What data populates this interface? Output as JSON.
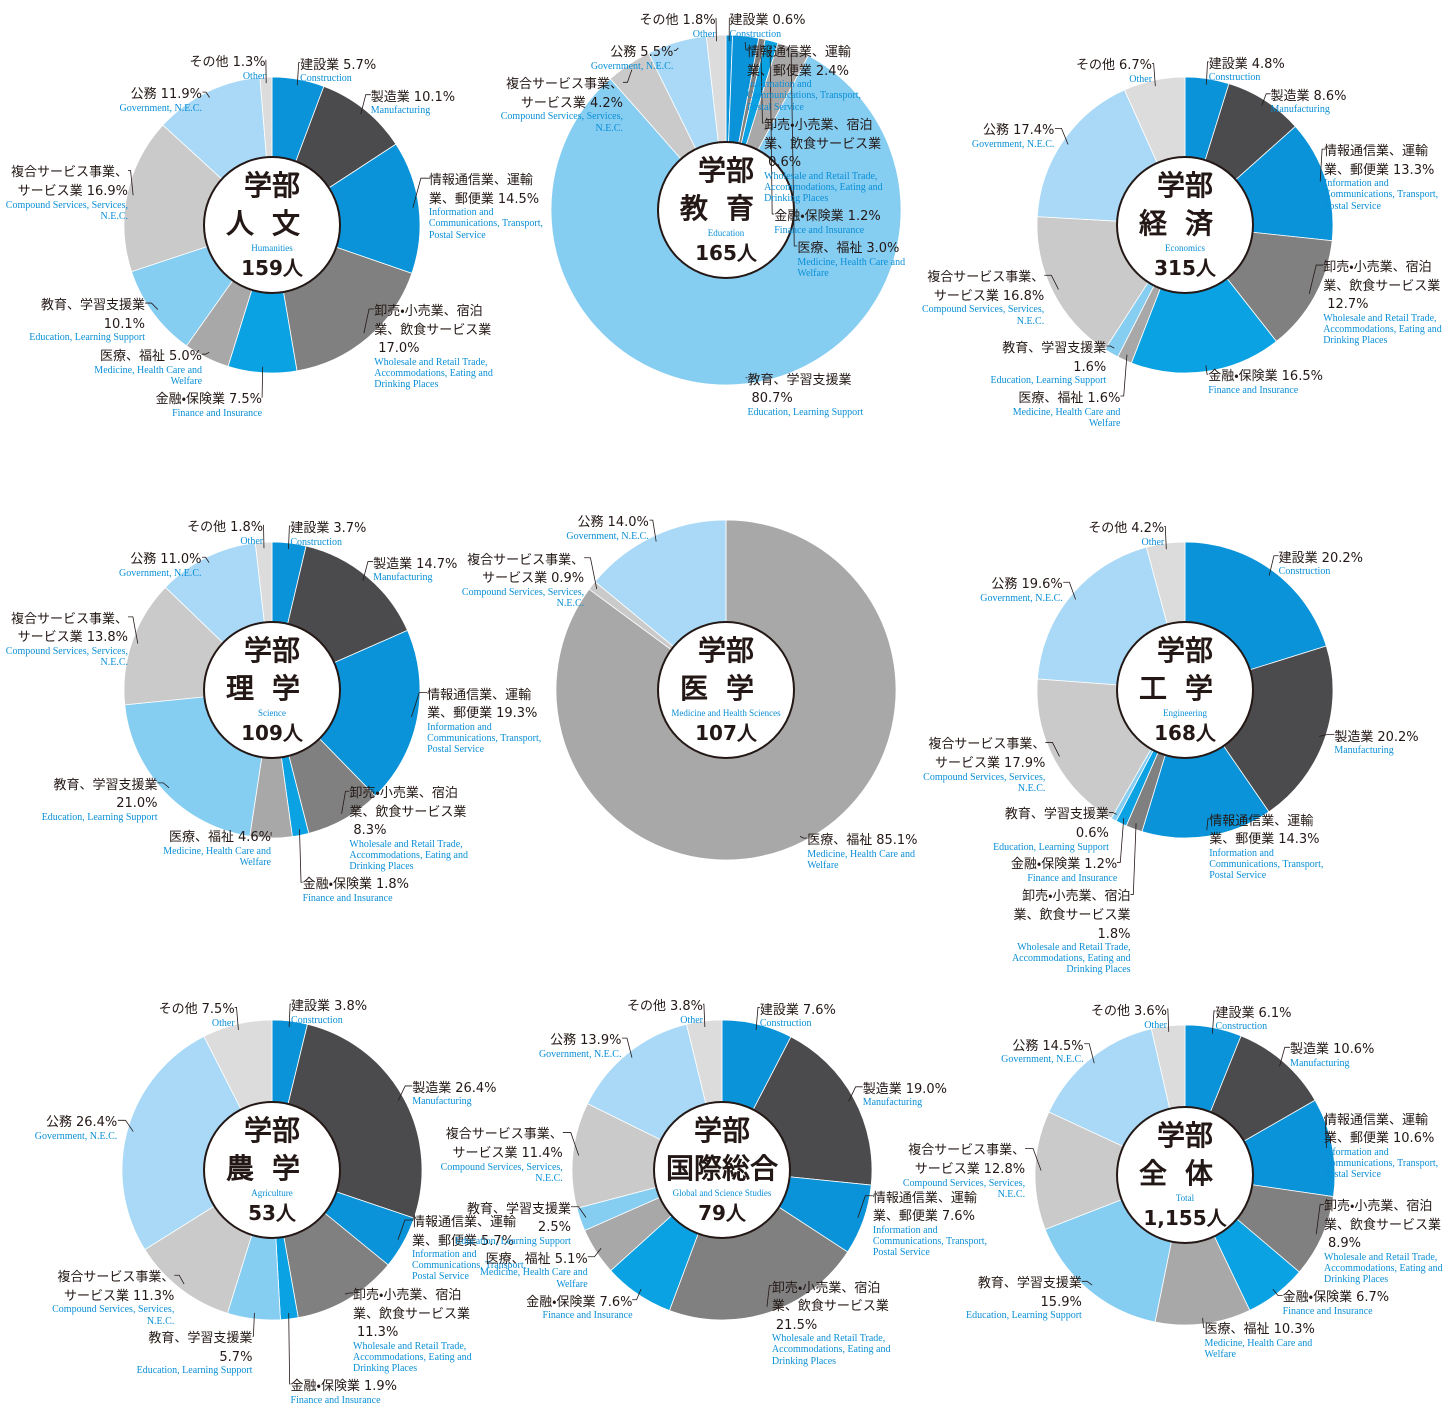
{
  "chart_data": [
    {
      "type": "pie",
      "donut": true,
      "center_title": "学部",
      "faculty": "人文",
      "faculty_en": "Humanities",
      "total": "159人",
      "categories": [
        "建設業",
        "製造業",
        "情報通信業、運輸業、郵便業",
        "卸売・小売業、宿泊業、飲食サービス業",
        "金融・保険業",
        "医療、福祉",
        "教育、学習支援業",
        "複合サービス事業、サービス業",
        "公務",
        "その他"
      ],
      "categories_en": [
        "Construction",
        "Manufacturing",
        "Information and Communications, Transport, Postal Service",
        "Wholesale and Retail Trade, Accommodations, Eating and Drinking Places",
        "Finance and Insurance",
        "Medicine, Health Care and Welfare",
        "Education, Learning Support",
        "Compound Services, Services, N.E.C.",
        "Government, N.E.C.",
        "Other"
      ],
      "values": [
        5.7,
        10.1,
        14.5,
        17.0,
        7.5,
        5.0,
        10.1,
        16.9,
        11.9,
        1.3
      ],
      "value_labels": [
        "5.7%",
        "10.1%",
        "14.5%",
        "17.0%",
        "7.5%",
        "5.0%",
        "10.1%",
        "16.9%",
        "11.9%",
        "1.3%"
      ],
      "colors": [
        "#0a93d8",
        "#4b4b4d",
        "#0a93d8",
        "#808080",
        "#0aa2e2",
        "#a8a8a8",
        "#86cdf2",
        "#cacaca",
        "#a9d9f6",
        "#dcdcdc"
      ]
    },
    {
      "type": "pie",
      "donut": true,
      "center_title": "学部",
      "faculty": "教育",
      "faculty_en": "Education",
      "total": "165人",
      "categories": [
        "建設業",
        "情報通信業、運輸業、郵便業",
        "卸売・小売業、宿泊業、飲食サービス業",
        "金融・保険業",
        "医療、福祉",
        "教育、学習支援業",
        "複合サービス事業、サービス業",
        "公務",
        "その他"
      ],
      "categories_en": [
        "Construction",
        "Information and Communications, Transport, Postal Service",
        "Wholesale and Retail Trade, Accommodations, Eating and Drinking Places",
        "Finance and Insurance",
        "Medicine, Health Care and Welfare",
        "Education, Learning Support",
        "Compound Services, Services, N.E.C.",
        "Government, N.E.C.",
        "Other"
      ],
      "values": [
        0.6,
        2.4,
        0.6,
        1.2,
        3.0,
        80.7,
        4.2,
        5.5,
        1.8
      ],
      "value_labels": [
        "0.6%",
        "2.4%",
        "0.6%",
        "1.2%",
        "3.0%",
        "80.7%",
        "4.2%",
        "5.5%",
        "1.8%"
      ],
      "colors": [
        "#0a93d8",
        "#0a93d8",
        "#808080",
        "#0aa2e2",
        "#a8a8a8",
        "#86cdf2",
        "#cacaca",
        "#a9d9f6",
        "#dcdcdc"
      ]
    },
    {
      "type": "pie",
      "donut": true,
      "center_title": "学部",
      "faculty": "経済",
      "faculty_en": "Economics",
      "total": "315人",
      "categories": [
        "建設業",
        "製造業",
        "情報通信業、運輸業、郵便業",
        "卸売・小売業、宿泊業、飲食サービス業",
        "金融・保険業",
        "医療、福祉",
        "教育、学習支援業",
        "複合サービス事業、サービス業",
        "公務",
        "その他"
      ],
      "categories_en": [
        "Construction",
        "Manufacturing",
        "Information and Communications, Transport, Postal Service",
        "Wholesale and Retail Trade, Accommodations, Eating and Drinking Places",
        "Finance and Insurance",
        "Medicine, Health Care and Welfare",
        "Education, Learning Support",
        "Compound Services, Services, N.E.C.",
        "Government, N.E.C.",
        "Other"
      ],
      "values": [
        4.8,
        8.6,
        13.3,
        12.7,
        16.5,
        1.6,
        1.6,
        16.8,
        17.4,
        6.7
      ],
      "value_labels": [
        "4.8%",
        "8.6%",
        "13.3%",
        "12.7%",
        "16.5%",
        "1.6%",
        "1.6%",
        "16.8%",
        "17.4%",
        "6.7%"
      ],
      "colors": [
        "#0a93d8",
        "#4b4b4d",
        "#0a93d8",
        "#808080",
        "#0aa2e2",
        "#a8a8a8",
        "#86cdf2",
        "#cacaca",
        "#a9d9f6",
        "#dcdcdc"
      ]
    },
    {
      "type": "pie",
      "donut": true,
      "center_title": "学部",
      "faculty": "理学",
      "faculty_en": "Science",
      "total": "109人",
      "categories": [
        "建設業",
        "製造業",
        "情報通信業、運輸業、郵便業",
        "卸売・小売業、宿泊業、飲食サービス業",
        "金融・保険業",
        "医療、福祉",
        "教育、学習支援業",
        "複合サービス事業、サービス業",
        "公務",
        "その他"
      ],
      "categories_en": [
        "Construction",
        "Manufacturing",
        "Information and Communications, Transport, Postal Service",
        "Wholesale and Retail Trade, Accommodations, Eating and Drinking Places",
        "Finance and Insurance",
        "Medicine, Health Care and Welfare",
        "Education, Learning Support",
        "Compound Services, Services, N.E.C.",
        "Government, N.E.C.",
        "Other"
      ],
      "values": [
        3.7,
        14.7,
        19.3,
        8.3,
        1.8,
        4.6,
        21.0,
        13.8,
        11.0,
        1.8
      ],
      "value_labels": [
        "3.7%",
        "14.7%",
        "19.3%",
        "8.3%",
        "1.8%",
        "4.6%",
        "21.0%",
        "13.8%",
        "11.0%",
        "1.8%"
      ],
      "colors": [
        "#0a93d8",
        "#4b4b4d",
        "#0a93d8",
        "#808080",
        "#0aa2e2",
        "#a8a8a8",
        "#86cdf2",
        "#cacaca",
        "#a9d9f6",
        "#dcdcdc"
      ]
    },
    {
      "type": "pie",
      "donut": true,
      "center_title": "学部",
      "faculty": "医学",
      "faculty_en": "Medicine and Health Sciences",
      "total": "107人",
      "categories": [
        "医療、福祉",
        "複合サービス事業、サービス業",
        "公務"
      ],
      "categories_en": [
        "Medicine, Health Care and Welfare",
        "Compound Services, Services, N.E.C.",
        "Government, N.E.C."
      ],
      "values": [
        85.1,
        0.9,
        14.0
      ],
      "value_labels": [
        "85.1%",
        "0.9%",
        "14.0%"
      ],
      "colors": [
        "#a8a8a8",
        "#cacaca",
        "#a9d9f6"
      ]
    },
    {
      "type": "pie",
      "donut": true,
      "center_title": "学部",
      "faculty": "工学",
      "faculty_en": "Engineering",
      "total": "168人",
      "categories": [
        "建設業",
        "製造業",
        "情報通信業、運輸業、郵便業",
        "卸売・小売業、宿泊業、飲食サービス業",
        "金融・保険業",
        "教育、学習支援業",
        "複合サービス事業、サービス業",
        "公務",
        "その他"
      ],
      "categories_en": [
        "Construction",
        "Manufacturing",
        "Information and Communications, Transport, Postal Service",
        "Wholesale and Retail Trade, Accommodations, Eating and Drinking Places",
        "Finance and Insurance",
        "Education, Learning Support",
        "Compound Services, Services, N.E.C.",
        "Government, N.E.C.",
        "Other"
      ],
      "values": [
        20.2,
        20.2,
        14.3,
        1.8,
        1.2,
        0.6,
        17.9,
        19.6,
        4.2
      ],
      "value_labels": [
        "20.2%",
        "20.2%",
        "14.3%",
        "1.8%",
        "1.2%",
        "0.6%",
        "17.9%",
        "19.6%",
        "4.2%"
      ],
      "colors": [
        "#0a93d8",
        "#4b4b4d",
        "#0a93d8",
        "#808080",
        "#0aa2e2",
        "#86cdf2",
        "#cacaca",
        "#a9d9f6",
        "#dcdcdc"
      ]
    },
    {
      "type": "pie",
      "donut": true,
      "center_title": "学部",
      "faculty": "農学",
      "faculty_en": "Agriculture",
      "total": "53人",
      "categories": [
        "建設業",
        "製造業",
        "情報通信業、運輸業、郵便業",
        "卸売・小売業、宿泊業、飲食サービス業",
        "金融・保険業",
        "教育、学習支援業",
        "複合サービス事業、サービス業",
        "公務",
        "その他"
      ],
      "categories_en": [
        "Construction",
        "Manufacturing",
        "Information and Communications, Transport, Postal Service",
        "Wholesale and Retail Trade, Accommodations, Eating and Drinking Places",
        "Finance and Insurance",
        "Education, Learning Support",
        "Compound Services, Services, N.E.C.",
        "Government, N.E.C.",
        "Other"
      ],
      "values": [
        3.8,
        26.4,
        5.7,
        11.3,
        1.9,
        5.7,
        11.3,
        26.4,
        7.5
      ],
      "value_labels": [
        "3.8%",
        "26.4%",
        "5.7%",
        "11.3%",
        "1.9%",
        "5.7%",
        "11.3%",
        "26.4%",
        "7.5%"
      ],
      "colors": [
        "#0a93d8",
        "#4b4b4d",
        "#0a93d8",
        "#808080",
        "#0aa2e2",
        "#86cdf2",
        "#cacaca",
        "#a9d9f6",
        "#dcdcdc"
      ]
    },
    {
      "type": "pie",
      "donut": true,
      "center_title": "学部",
      "faculty": "国際総合",
      "faculty_en": "Global and Science Studies",
      "total": "79人",
      "categories": [
        "建設業",
        "製造業",
        "情報通信業、運輸業、郵便業",
        "卸売・小売業、宿泊業、飲食サービス業",
        "金融・保険業",
        "医療、福祉",
        "教育、学習支援業",
        "複合サービス事業、サービス業",
        "公務",
        "その他"
      ],
      "categories_en": [
        "Construction",
        "Manufacturing",
        "Information and Communications, Transport, Postal Service",
        "Wholesale and Retail Trade, Accommodations, Eating and Drinking Places",
        "Finance and Insurance",
        "Medicine, Health Care and Welfare",
        "Education, Learning Support",
        "Compound Services, Services, N.E.C.",
        "Government, N.E.C.",
        "Other"
      ],
      "values": [
        7.6,
        19.0,
        7.6,
        21.5,
        7.6,
        5.1,
        2.5,
        11.4,
        13.9,
        3.8
      ],
      "value_labels": [
        "7.6%",
        "19.0%",
        "7.6%",
        "21.5%",
        "7.6%",
        "5.1%",
        "2.5%",
        "11.4%",
        "13.9%",
        "3.8%"
      ],
      "colors": [
        "#0a93d8",
        "#4b4b4d",
        "#0a93d8",
        "#808080",
        "#0aa2e2",
        "#a8a8a8",
        "#86cdf2",
        "#cacaca",
        "#a9d9f6",
        "#dcdcdc"
      ]
    },
    {
      "type": "pie",
      "donut": true,
      "center_title": "学部",
      "faculty": "全体",
      "faculty_en": "Total",
      "total": "1,155人",
      "categories": [
        "建設業",
        "製造業",
        "情報通信業、運輸業、郵便業",
        "卸売・小売業、宿泊業、飲食サービス業",
        "金融・保険業",
        "医療、福祉",
        "教育、学習支援業",
        "複合サービス事業、サービス業",
        "公務",
        "その他"
      ],
      "categories_en": [
        "Construction",
        "Manufacturing",
        "Information and Communications, Transport, Postal Service",
        "Wholesale and Retail Trade, Accommodations, Eating and Drinking Places",
        "Finance and Insurance",
        "Medicine, Health Care and Welfare",
        "Education, Learning Support",
        "Compound Services, Services, N.E.C.",
        "Government, N.E.C.",
        "Other"
      ],
      "values": [
        6.1,
        10.6,
        10.6,
        8.9,
        6.7,
        10.3,
        15.9,
        12.8,
        14.5,
        3.6
      ],
      "value_labels": [
        "6.1%",
        "10.6%",
        "10.6%",
        "8.9%",
        "6.7%",
        "10.3%",
        "15.9%",
        "12.8%",
        "14.5%",
        "3.6%"
      ],
      "colors": [
        "#0a93d8",
        "#4b4b4d",
        "#0a93d8",
        "#808080",
        "#0aa2e2",
        "#a8a8a8",
        "#86cdf2",
        "#cacaca",
        "#a9d9f6",
        "#dcdcdc"
      ]
    }
  ]
}
